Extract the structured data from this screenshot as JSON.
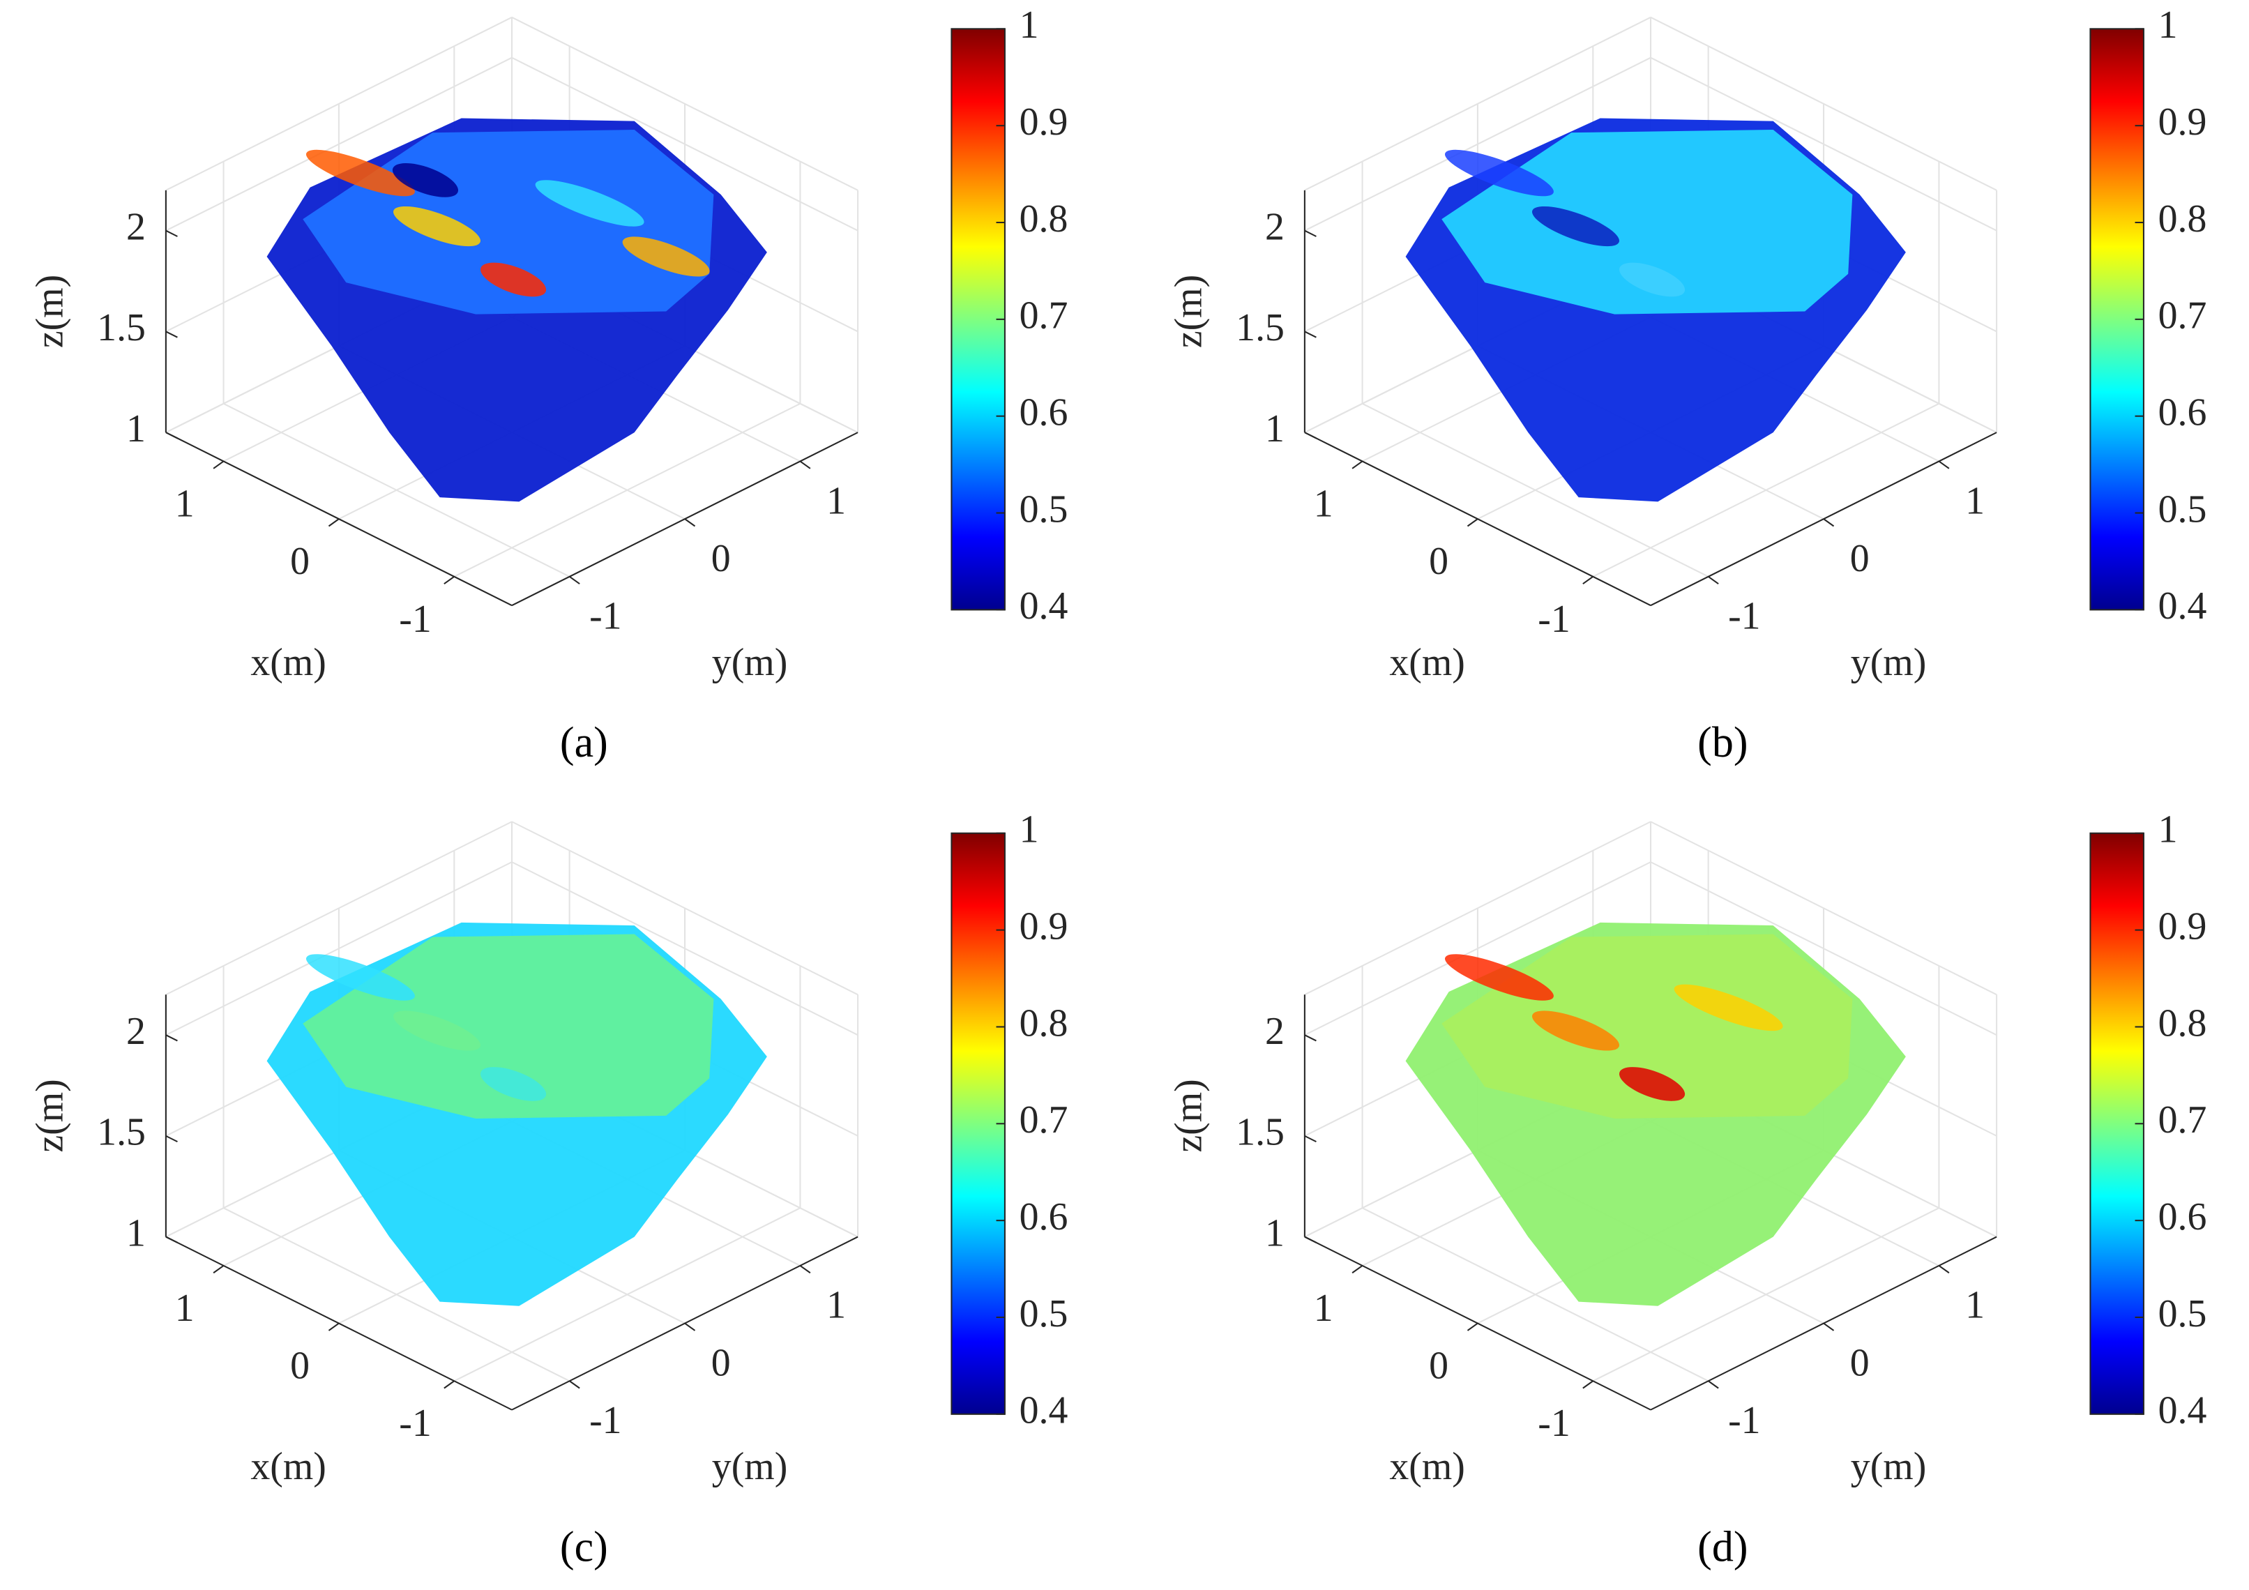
{
  "chart_data": [
    {
      "type": "scatter3d",
      "label": "(a)",
      "xlabel": "x(m)",
      "ylabel": "y(m)",
      "zlabel": "z(m)",
      "xlim": [
        -1.5,
        1.5
      ],
      "ylim": [
        -1.5,
        1.5
      ],
      "zlim": [
        1,
        2.2
      ],
      "xticks": [
        -1,
        0,
        1
      ],
      "yticks": [
        -1,
        0,
        1
      ],
      "zticks": [
        1,
        1.5,
        2
      ],
      "grid": true,
      "colormap": "jet",
      "clim": [
        0.4,
        1
      ],
      "cticks": [
        0.4,
        0.5,
        0.6,
        0.7,
        0.8,
        0.9,
        1
      ]
    },
    {
      "type": "scatter3d",
      "label": "(b)",
      "xlabel": "x(m)",
      "ylabel": "y(m)",
      "zlabel": "z(m)",
      "xlim": [
        -1.5,
        1.5
      ],
      "ylim": [
        -1.5,
        1.5
      ],
      "zlim": [
        1,
        2.2
      ],
      "xticks": [
        -1,
        0,
        1
      ],
      "yticks": [
        -1,
        0,
        1
      ],
      "zticks": [
        1,
        1.5,
        2
      ],
      "grid": true,
      "colormap": "jet",
      "clim": [
        0.4,
        1
      ],
      "cticks": [
        0.4,
        0.5,
        0.6,
        0.7,
        0.8,
        0.9,
        1
      ]
    },
    {
      "type": "scatter3d",
      "label": "(c)",
      "xlabel": "x(m)",
      "ylabel": "y(m)",
      "zlabel": "z(m)",
      "xlim": [
        -1.5,
        1.5
      ],
      "ylim": [
        -1.5,
        1.5
      ],
      "zlim": [
        1,
        2.2
      ],
      "xticks": [
        -1,
        0,
        1
      ],
      "yticks": [
        -1,
        0,
        1
      ],
      "zticks": [
        1,
        1.5,
        2
      ],
      "grid": true,
      "colormap": "jet",
      "clim": [
        0.4,
        1
      ],
      "cticks": [
        0.4,
        0.5,
        0.6,
        0.7,
        0.8,
        0.9,
        1
      ]
    },
    {
      "type": "scatter3d",
      "label": "(d)",
      "xlabel": "x(m)",
      "ylabel": "y(m)",
      "zlabel": "z(m)",
      "xlim": [
        -1.5,
        1.5
      ],
      "ylim": [
        -1.5,
        1.5
      ],
      "zlim": [
        1,
        2.2
      ],
      "xticks": [
        -1,
        0,
        1
      ],
      "yticks": [
        -1,
        0,
        1
      ],
      "zticks": [
        1,
        1.5,
        2
      ],
      "grid": true,
      "colormap": "jet",
      "clim": [
        0.4,
        1
      ],
      "cticks": [
        0.4,
        0.5,
        0.6,
        0.7,
        0.8,
        0.9,
        1
      ]
    }
  ]
}
